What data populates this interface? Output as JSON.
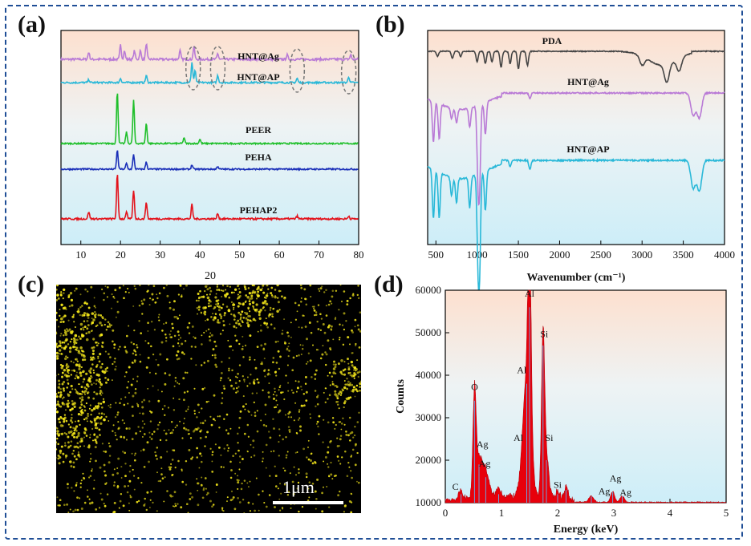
{
  "panels": {
    "a": "(a)",
    "b": "(b)",
    "c": "(c)",
    "d": "(d)"
  },
  "colors": {
    "frame": "#1f4e96",
    "bg_top": "#fde0cf",
    "bg_bottom": "#cdeef8",
    "HNT@Ag": "#b97ad6",
    "HNT@AP": "#29b8d8",
    "PEER": "#1fbf2a",
    "PEHA": "#1a2fb8",
    "PEHAP2": "#e3121b",
    "PDA": "#444444",
    "EDS": "#e8000b",
    "map_dots": "#f2e51a"
  },
  "chart_data": [
    {
      "panel": "a",
      "type": "line",
      "title": "",
      "xlabel": "",
      "ylabel": "",
      "xlim": [
        5,
        80
      ],
      "xticks": [
        10,
        20,
        30,
        40,
        50,
        60,
        70,
        80
      ],
      "series": [
        {
          "name": "HNT@Ag",
          "offset": 5,
          "peaks": [
            [
              12,
              0.5
            ],
            [
              20,
              1.0
            ],
            [
              21,
              0.6
            ],
            [
              23.5,
              0.6
            ],
            [
              25,
              0.6
            ],
            [
              26.5,
              1.1
            ],
            [
              35,
              0.6
            ],
            [
              38.5,
              0.9
            ],
            [
              44.5,
              0.4
            ],
            [
              62,
              0.3
            ],
            [
              78,
              0.3
            ]
          ],
          "noise": 0.08
        },
        {
          "name": "HNT@AP",
          "offset": 4,
          "peaks": [
            [
              12,
              0.2
            ],
            [
              20,
              0.3
            ],
            [
              26.5,
              0.5
            ],
            [
              38,
              1.4
            ],
            [
              38.8,
              0.8
            ],
            [
              44.5,
              0.5
            ],
            [
              64.5,
              0.3
            ],
            [
              77.5,
              0.4
            ]
          ],
          "noise": 0.06
        },
        {
          "name": "PEER",
          "offset": 2.5,
          "peaks": [
            [
              19.2,
              3.6
            ],
            [
              21.5,
              0.8
            ],
            [
              23.3,
              3.0
            ],
            [
              26.5,
              1.4
            ],
            [
              36,
              0.4
            ],
            [
              40,
              0.3
            ]
          ],
          "noise": 0.05
        },
        {
          "name": "PEHA",
          "offset": 1.5,
          "peaks": [
            [
              19.2,
              1.3
            ],
            [
              21.5,
              0.4
            ],
            [
              23.3,
              1.0
            ],
            [
              26.5,
              0.5
            ],
            [
              38,
              0.3
            ],
            [
              44.5,
              0.2
            ]
          ],
          "noise": 0.05
        },
        {
          "name": "PEHAP2",
          "offset": 0,
          "peaks": [
            [
              12,
              0.5
            ],
            [
              19.2,
              3.1
            ],
            [
              21.5,
              0.5
            ],
            [
              23.3,
              2.0
            ],
            [
              26.5,
              1.2
            ],
            [
              38,
              1.0
            ],
            [
              44.5,
              0.4
            ],
            [
              64.5,
              0.2
            ],
            [
              77.5,
              0.2
            ]
          ],
          "noise": 0.06
        }
      ],
      "annotations": [
        "dashed ellipses at ~38°, ~44.5°, ~64.5°, ~77.5°"
      ]
    },
    {
      "panel": "b",
      "type": "line",
      "title": "",
      "xlabel": "Wavenumber (cm⁻¹)",
      "ylabel": "",
      "xlim": [
        400,
        4000
      ],
      "xticks": [
        500,
        1000,
        1500,
        2000,
        2500,
        3000,
        3500,
        4000
      ],
      "series": [
        {
          "name": "PDA",
          "offset": 4,
          "dips": [
            [
              520,
              0.3
            ],
            [
              700,
              0.4
            ],
            [
              800,
              0.3
            ],
            [
              1000,
              0.6
            ],
            [
              1100,
              0.7
            ],
            [
              1180,
              0.6
            ],
            [
              1290,
              0.9
            ],
            [
              1400,
              0.7
            ],
            [
              1500,
              1.0
            ],
            [
              1610,
              0.8
            ],
            [
              3000,
              0.5
            ],
            [
              3300,
              1.0
            ],
            [
              3450,
              0.7
            ]
          ]
        },
        {
          "name": "HNT@Ag",
          "offset": 2,
          "dips": [
            [
              470,
              1.5
            ],
            [
              540,
              1.3
            ],
            [
              690,
              0.4
            ],
            [
              750,
              0.5
            ],
            [
              910,
              0.7
            ],
            [
              1010,
              2.4
            ],
            [
              1030,
              2.6
            ],
            [
              1100,
              1.2
            ],
            [
              1640,
              0.2
            ],
            [
              3620,
              0.8
            ],
            [
              3695,
              0.9
            ]
          ]
        },
        {
          "name": "HNT@AP",
          "offset": 0,
          "dips": [
            [
              470,
              1.6
            ],
            [
              540,
              1.5
            ],
            [
              690,
              0.6
            ],
            [
              750,
              0.8
            ],
            [
              910,
              1.0
            ],
            [
              1010,
              2.5
            ],
            [
              1030,
              2.8
            ],
            [
              1100,
              1.3
            ],
            [
              1400,
              0.2
            ],
            [
              1640,
              0.3
            ],
            [
              3620,
              0.9
            ],
            [
              3695,
              1.0
            ]
          ]
        }
      ]
    },
    {
      "panel": "c",
      "type": "image",
      "title": "20",
      "scale_label": "1μm"
    },
    {
      "panel": "d",
      "type": "bar",
      "title": "",
      "xlabel": "Energy (keV)",
      "ylabel": "Counts",
      "xlim": [
        0,
        5
      ],
      "ylim": [
        10000,
        60000
      ],
      "xticks": [
        0,
        1,
        2,
        3,
        4,
        5
      ],
      "yticks": [
        10000,
        20000,
        30000,
        40000,
        50000,
        60000
      ],
      "peaks": [
        {
          "x": 0.28,
          "y": 12000,
          "w": 0.05
        },
        {
          "x": 0.52,
          "y": 34000,
          "w": 0.04
        },
        {
          "x": 0.6,
          "y": 19000,
          "w": 0.08
        },
        {
          "x": 0.72,
          "y": 16000,
          "w": 0.08
        },
        {
          "x": 0.95,
          "y": 12000,
          "w": 0.06
        },
        {
          "x": 1.5,
          "y": 56000,
          "w": 0.04
        },
        {
          "x": 1.45,
          "y": 38000,
          "w": 0.1
        },
        {
          "x": 1.74,
          "y": 47000,
          "w": 0.04
        },
        {
          "x": 1.8,
          "y": 20000,
          "w": 0.06
        },
        {
          "x": 2.0,
          "y": 12000,
          "w": 0.06
        },
        {
          "x": 2.15,
          "y": 13000,
          "w": 0.05
        },
        {
          "x": 2.6,
          "y": 11500,
          "w": 0.06
        },
        {
          "x": 2.98,
          "y": 12500,
          "w": 0.05
        },
        {
          "x": 3.15,
          "y": 11500,
          "w": 0.05
        }
      ],
      "peak_labels": [
        {
          "text": "C",
          "x": 0.18,
          "y": 13000
        },
        {
          "text": "O",
          "x": 0.52,
          "y": 36500
        },
        {
          "text": "Ag",
          "x": 0.66,
          "y": 23000
        },
        {
          "text": "Ag",
          "x": 0.7,
          "y": 18500
        },
        {
          "text": "Al",
          "x": 1.5,
          "y": 58500
        },
        {
          "text": "Si",
          "x": 1.76,
          "y": 49000
        },
        {
          "text": "Al",
          "x": 1.36,
          "y": 40500
        },
        {
          "text": "Al",
          "x": 1.3,
          "y": 24500
        },
        {
          "text": "Si",
          "x": 1.85,
          "y": 24500
        },
        {
          "text": "Si",
          "x": 2.0,
          "y": 13500
        },
        {
          "text": "Ag",
          "x": 2.83,
          "y": 12000
        },
        {
          "text": "Ag",
          "x": 3.03,
          "y": 15000
        },
        {
          "text": "Ag",
          "x": 3.21,
          "y": 11700
        }
      ]
    }
  ]
}
